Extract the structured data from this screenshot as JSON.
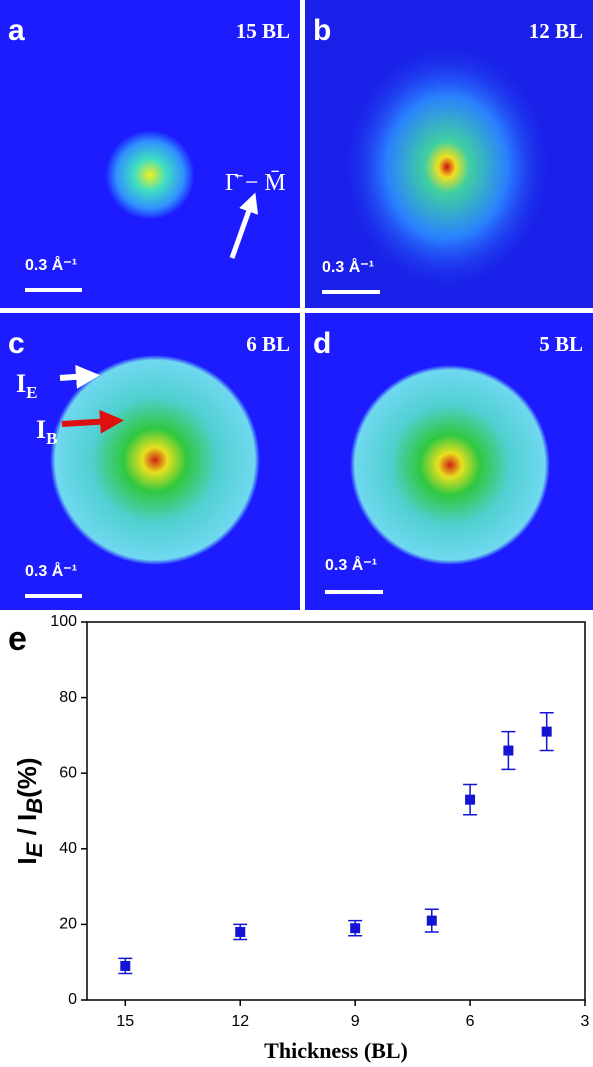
{
  "panels": [
    {
      "letter": "a",
      "thickness": "15 BL",
      "scale": "0.3 Å⁻¹",
      "annotation": "Γ̄ − M̄"
    },
    {
      "letter": "b",
      "thickness": "12 BL",
      "scale": "0.3 Å⁻¹"
    },
    {
      "letter": "c",
      "thickness": "6 BL",
      "scale": "0.3 Å⁻¹",
      "markers": [
        {
          "main": "I",
          "sub": "E"
        },
        {
          "main": "I",
          "sub": "B"
        }
      ]
    },
    {
      "letter": "d",
      "thickness": "5 BL",
      "scale": "0.3 Å⁻¹"
    }
  ],
  "chart_data": {
    "type": "scatter",
    "panel": "e",
    "x": [
      15,
      12,
      9,
      7,
      6,
      5,
      4
    ],
    "values": [
      9,
      18,
      19,
      21,
      53,
      66,
      71
    ],
    "errors": [
      2,
      2,
      2,
      3,
      4,
      5,
      5
    ],
    "color": "#1414d4",
    "xlim": [
      16,
      3
    ],
    "ylim": [
      0,
      100
    ],
    "xticks": [
      15,
      12,
      9,
      6,
      3
    ],
    "yticks": [
      0,
      20,
      40,
      60,
      80,
      100
    ],
    "x_label": "Thickness (BL)",
    "y_label_parts": [
      "I",
      "E",
      " / I",
      "B",
      "(%)"
    ]
  }
}
